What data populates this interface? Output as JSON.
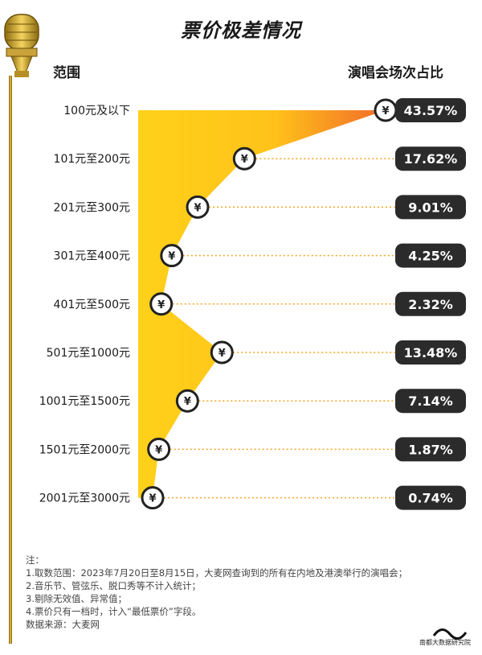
{
  "title": "票价极差情况",
  "left_header": "范围",
  "right_header": "演唱会场次占比",
  "coin_symbol": "¥",
  "chart_data": {
    "type": "bar",
    "categories": [
      "100元及以下",
      "101元至200元",
      "201元至300元",
      "301元至400元",
      "401元至500元",
      "501元至1000元",
      "1001元至1500元",
      "1501元至2000元",
      "2001元至3000元"
    ],
    "values": [
      43.57,
      17.62,
      9.01,
      4.25,
      2.32,
      13.48,
      7.14,
      1.87,
      0.74
    ],
    "value_labels": [
      "43.57%",
      "17.62%",
      "9.01%",
      "4.25%",
      "2.32%",
      "13.48%",
      "7.14%",
      "1.87%",
      "0.74%"
    ],
    "unit": "%",
    "colors": {
      "fill_top": "#f26b2a",
      "fill_bottom": "#ffd11a",
      "label_bg": "#2b2b2b",
      "label_text": "#ffffff",
      "dotted": "#f5a623"
    }
  },
  "notes": [
    "注：",
    "1.取数范围：2023年7月20日至8月15日，大麦网查询到的所有在内地及港澳举行的演唱会；",
    "2.音乐节、管弦乐、脱口秀等不计入统计；",
    "3.剔除无效值、异常值；",
    "4.票价只有一档时，计入“最低票价”字段。",
    "数据来源：大麦网"
  ],
  "logo_text": "南都大数据研究院"
}
